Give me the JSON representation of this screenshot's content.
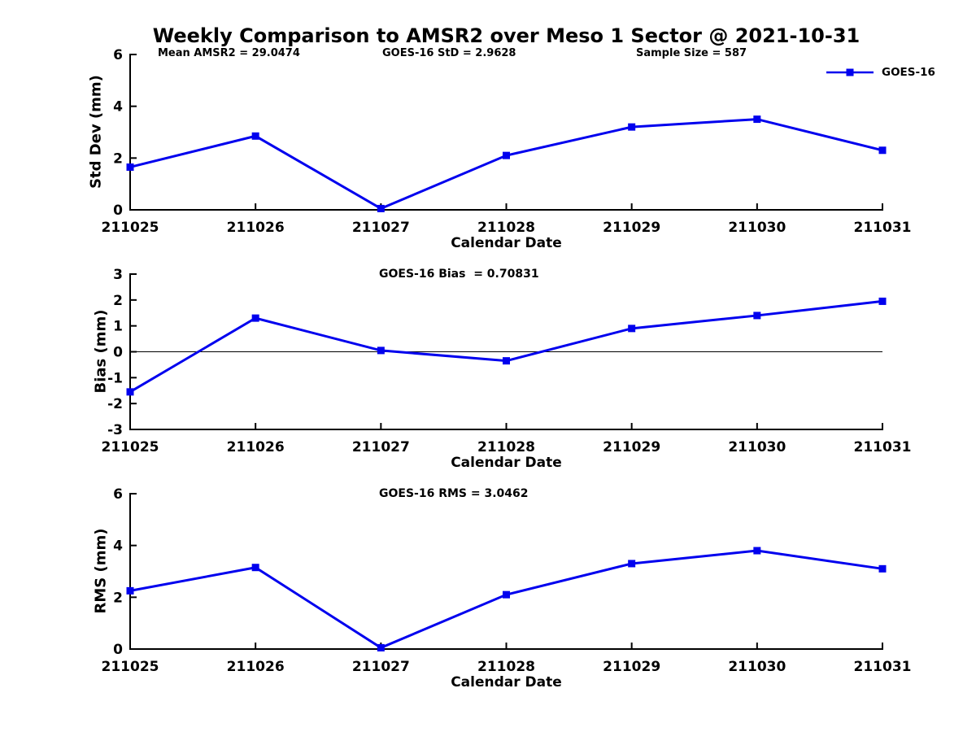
{
  "main_title": "Weekly Comparison to AMSR2 over Meso 1 Sector @ 2021-10-31",
  "colors": {
    "series": "#0000EE",
    "axis": "#000000",
    "background": "#FFFFFF"
  },
  "chart_data": [
    {
      "type": "line",
      "id": "std-dev",
      "title": "",
      "annotations": {
        "mean_amsr2": "Mean AMSR2 = 29.0474",
        "goes16_std": "GOES-16 StD = 2.9628",
        "sample_size": "Sample Size = 587"
      },
      "xlabel": "Calendar Date",
      "ylabel": "Std Dev (mm)",
      "categories": [
        "211025",
        "211026",
        "211027",
        "211028",
        "211029",
        "211030",
        "211031"
      ],
      "series": [
        {
          "name": "GOES-16",
          "marker": "square",
          "values": [
            1.65,
            2.85,
            0.05,
            2.1,
            3.2,
            3.5,
            2.3
          ]
        }
      ],
      "ylim": [
        0,
        6
      ],
      "yticks": [
        0,
        2,
        4,
        6
      ],
      "zero_line": false,
      "grid": false,
      "legend_position": "top-right"
    },
    {
      "type": "line",
      "id": "bias",
      "title": "GOES-16 Bias  = 0.70831",
      "xlabel": "Calendar Date",
      "ylabel": "Bias (mm)",
      "categories": [
        "211025",
        "211026",
        "211027",
        "211028",
        "211029",
        "211030",
        "211031"
      ],
      "series": [
        {
          "name": "GOES-16",
          "marker": "square",
          "values": [
            -1.55,
            1.3,
            0.05,
            -0.35,
            0.9,
            1.4,
            1.95
          ]
        }
      ],
      "ylim": [
        -3,
        3
      ],
      "yticks": [
        -3,
        -2,
        -1,
        0,
        1,
        2,
        3
      ],
      "zero_line": true,
      "grid": false,
      "legend_position": "none"
    },
    {
      "type": "line",
      "id": "rms",
      "title": "GOES-16 RMS = 3.0462",
      "xlabel": "Calendar Date",
      "ylabel": "RMS (mm)",
      "categories": [
        "211025",
        "211026",
        "211027",
        "211028",
        "211029",
        "211030",
        "211031"
      ],
      "series": [
        {
          "name": "GOES-16",
          "marker": "square",
          "values": [
            2.25,
            3.15,
            0.05,
            2.1,
            3.3,
            3.8,
            3.1
          ]
        }
      ],
      "ylim": [
        0,
        6
      ],
      "yticks": [
        0,
        2,
        4,
        6
      ],
      "zero_line": false,
      "grid": false,
      "legend_position": "none"
    }
  ]
}
